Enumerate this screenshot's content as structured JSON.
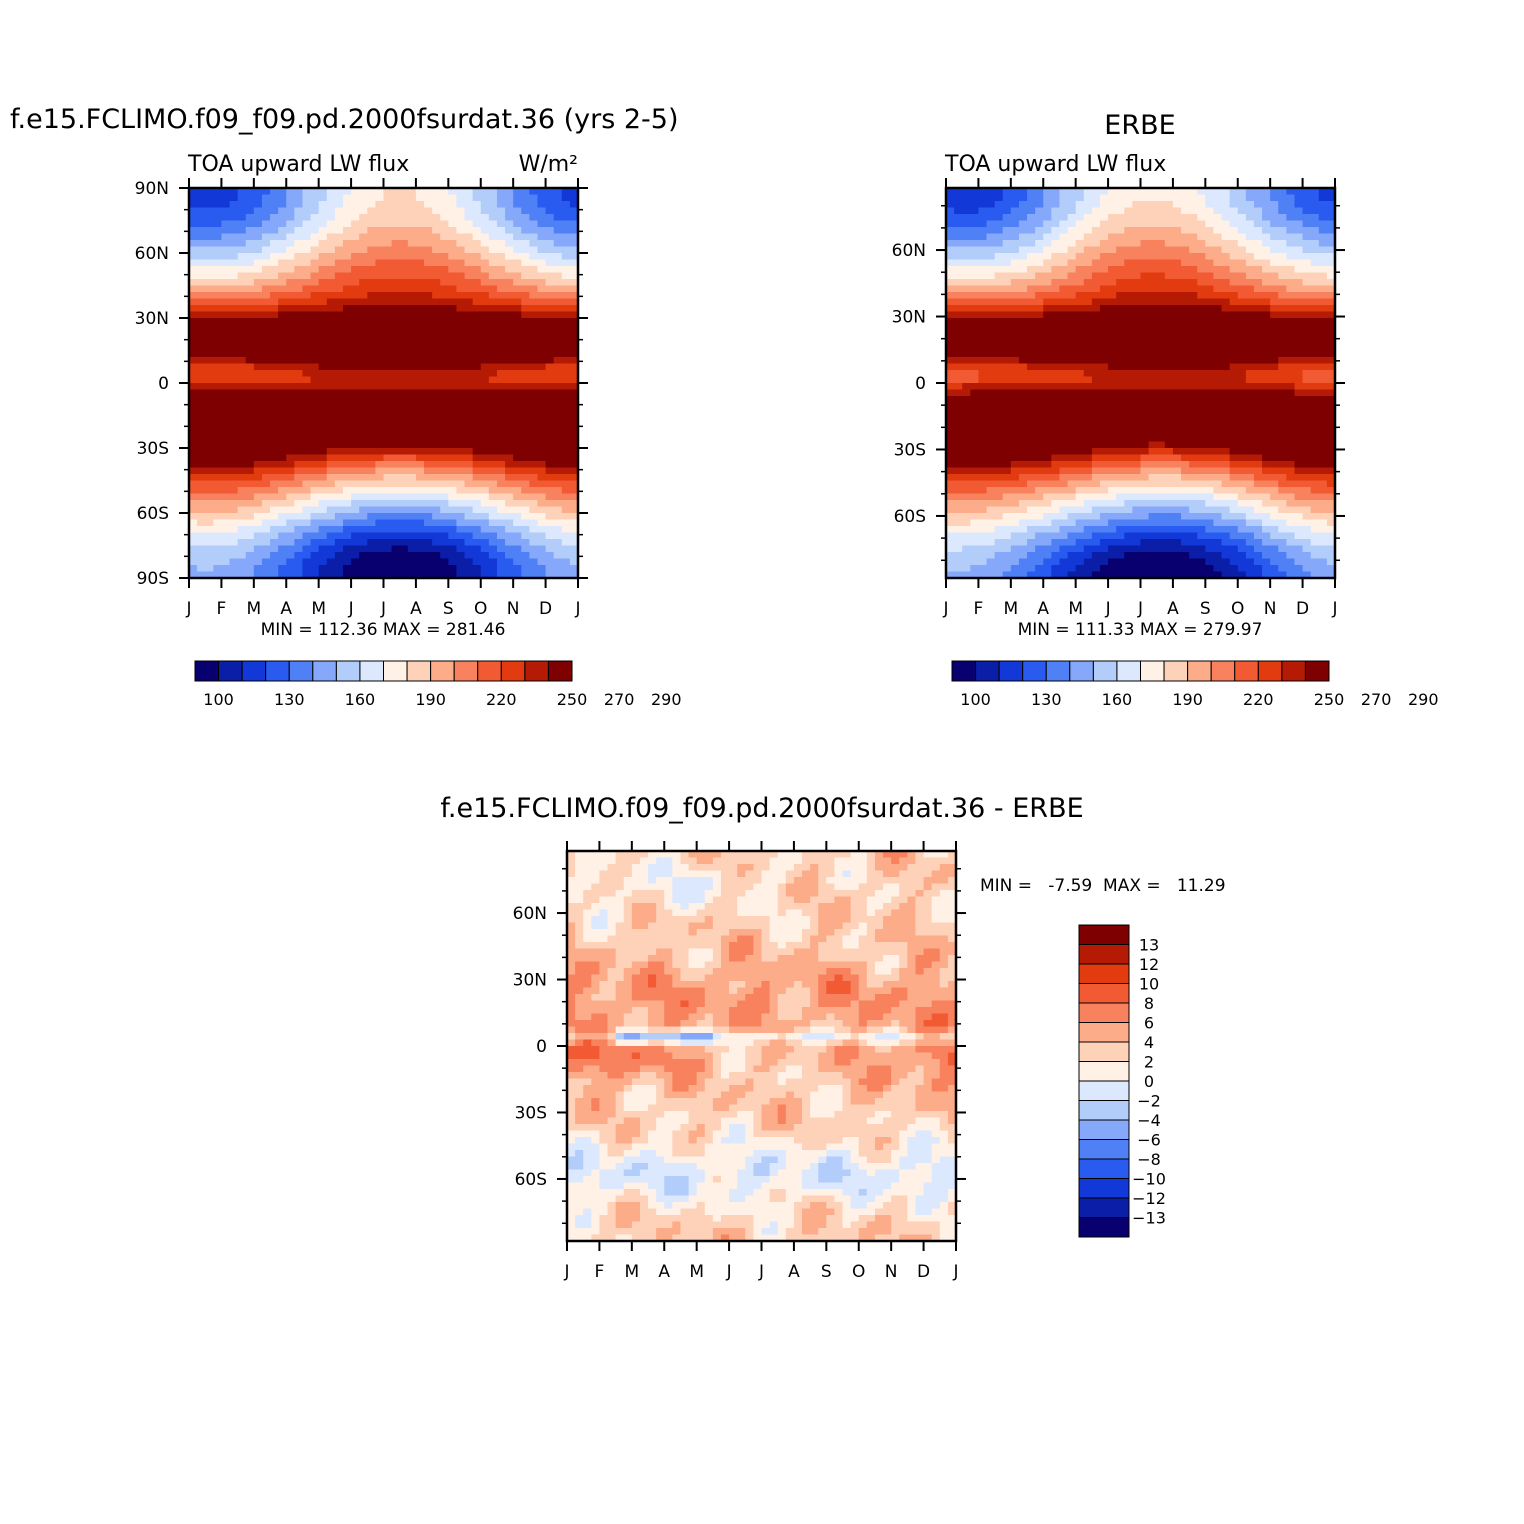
{
  "chart_data": [
    {
      "type": "heatmap",
      "title": "f.e15.FCLIMO.f09_f09.pd.2000fsurdat.36 (yrs 2-5)",
      "subtitle_left": "TOA upward LW flux",
      "units": "W/m²",
      "x_ticks": [
        "J",
        "F",
        "M",
        "A",
        "M",
        "J",
        "J",
        "A",
        "S",
        "O",
        "N",
        "D",
        "J"
      ],
      "y_ticks": [
        {
          "lat": 90,
          "label": "90N"
        },
        {
          "lat": 60,
          "label": "60N"
        },
        {
          "lat": 30,
          "label": "30N"
        },
        {
          "lat": 0,
          "label": "0"
        },
        {
          "lat": -30,
          "label": "30S"
        },
        {
          "lat": -60,
          "label": "60S"
        },
        {
          "lat": -90,
          "label": "90S"
        }
      ],
      "ylim": [
        -90,
        90
      ],
      "stats": "MIN = 112.36 MAX = 281.46",
      "min": 112.36,
      "max": 281.46,
      "colorbar_levels": [
        100,
        110,
        120,
        130,
        140,
        150,
        160,
        170,
        180,
        190,
        200,
        210,
        220,
        230,
        240,
        250,
        260,
        270,
        280,
        290
      ],
      "colorbar_labels": [
        "100",
        "130",
        "160",
        "190",
        "220",
        "250",
        "270",
        "290"
      ],
      "model": "model"
    },
    {
      "type": "heatmap",
      "title": "ERBE",
      "subtitle_left": "TOA upward LW flux",
      "x_ticks": [
        "J",
        "F",
        "M",
        "A",
        "M",
        "J",
        "J",
        "A",
        "S",
        "O",
        "N",
        "D",
        "J"
      ],
      "y_ticks": [
        {
          "lat": 60,
          "label": "60N"
        },
        {
          "lat": 30,
          "label": "30N"
        },
        {
          "lat": 0,
          "label": "0"
        },
        {
          "lat": -30,
          "label": "30S"
        },
        {
          "lat": -60,
          "label": "60S"
        }
      ],
      "ylim": [
        -88,
        88
      ],
      "stats": "MIN = 111.33 MAX = 279.97",
      "min": 111.33,
      "max": 279.97,
      "colorbar_levels": [
        100,
        110,
        120,
        130,
        140,
        150,
        160,
        170,
        180,
        190,
        200,
        210,
        220,
        230,
        240,
        250,
        260,
        270,
        280,
        290
      ],
      "colorbar_labels": [
        "100",
        "130",
        "160",
        "190",
        "220",
        "250",
        "270",
        "290"
      ],
      "model": "obs"
    },
    {
      "type": "heatmap",
      "title": "f.e15.FCLIMO.f09_f09.pd.2000fsurdat.36 - ERBE",
      "x_ticks": [
        "J",
        "F",
        "M",
        "A",
        "M",
        "J",
        "J",
        "A",
        "S",
        "O",
        "N",
        "D",
        "J"
      ],
      "y_ticks": [
        {
          "lat": 60,
          "label": "60N"
        },
        {
          "lat": 30,
          "label": "30N"
        },
        {
          "lat": 0,
          "label": "0"
        },
        {
          "lat": -30,
          "label": "30S"
        },
        {
          "lat": -60,
          "label": "60S"
        }
      ],
      "ylim": [
        -88,
        88
      ],
      "stats": "MIN =   -7.59  MAX =   11.29",
      "min": -7.59,
      "max": 11.29,
      "colorbar_levels": [
        -13,
        -12,
        -10,
        -8,
        -6,
        -4,
        -2,
        0,
        2,
        4,
        6,
        8,
        10,
        12,
        13
      ],
      "colorbar_labels": [
        "13",
        "12",
        "10",
        "8",
        "6",
        "4",
        "2",
        "0",
        "-2",
        "-4",
        "-6",
        "-8",
        "-10",
        "-12",
        "-13"
      ],
      "model": "diff"
    }
  ],
  "colors": {
    "flux": [
      "#08006e",
      "#0a1ea8",
      "#1238d8",
      "#2a5bf0",
      "#4f80f5",
      "#85a8fa",
      "#b3cdfb",
      "#dbe8fd",
      "#fff1e6",
      "#fdd2b9",
      "#fcac89",
      "#f8825e",
      "#f25a33",
      "#e23b10",
      "#b51a04",
      "#7f0000"
    ],
    "diff": [
      "#08006e",
      "#0a1ea8",
      "#1238d8",
      "#2a5bf0",
      "#4f80f5",
      "#85a8fa",
      "#b3cdfb",
      "#dbe8fd",
      "#fff1e6",
      "#fdd2b9",
      "#fcac89",
      "#f8825e",
      "#f25a33",
      "#e23b10",
      "#b51a04",
      "#7f0000"
    ]
  }
}
